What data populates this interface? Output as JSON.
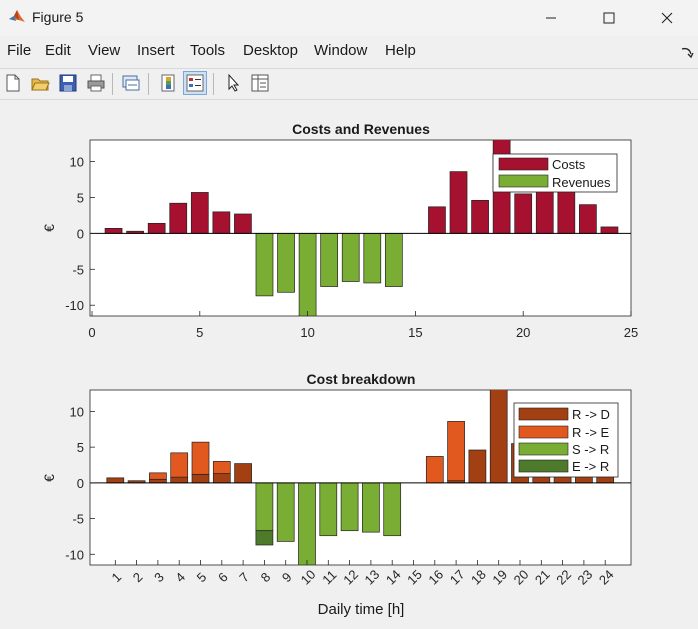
{
  "window": {
    "title": "Figure 5"
  },
  "menu": [
    "File",
    "Edit",
    "View",
    "Insert",
    "Tools",
    "Desktop",
    "Window",
    "Help"
  ],
  "toolbar_icons": [
    "new-figure-icon",
    "open-file-icon",
    "save-icon",
    "print-icon",
    "link-plot-icon",
    "insert-colorbar-icon",
    "insert-legend-icon",
    "edit-plot-arrow-icon",
    "property-inspector-icon"
  ],
  "colors": {
    "costs": "#a5112e",
    "revenues": "#7aad34",
    "r_d": "#a23f13",
    "r_e": "#e2591f",
    "s_r": "#7aad34",
    "e_r": "#4d7a2b"
  },
  "chart_data": [
    {
      "type": "bar",
      "title": "Costs and Revenues",
      "ylabel": "€",
      "xlabel": "",
      "xlim": [
        0,
        25
      ],
      "ylim": [
        -11.5,
        13
      ],
      "xticks": [
        "0",
        "5",
        "10",
        "15",
        "20",
        "25"
      ],
      "yticks": [
        "10",
        "5",
        "0",
        "-5",
        "-10"
      ],
      "legend": [
        "Costs",
        "Revenues"
      ],
      "legend_position": "top-right",
      "x": [
        1,
        2,
        3,
        4,
        5,
        6,
        7,
        8,
        9,
        10,
        11,
        12,
        13,
        14,
        15,
        16,
        17,
        18,
        19,
        20,
        21,
        22,
        23,
        24
      ],
      "series": [
        {
          "name": "Costs",
          "values": [
            0.7,
            0.3,
            1.4,
            4.2,
            5.7,
            3.0,
            2.7,
            0,
            0,
            0,
            0,
            0,
            0,
            0,
            0,
            3.7,
            8.6,
            4.6,
            13.3,
            5.5,
            6.8,
            6.5,
            4.0,
            0.9
          ]
        },
        {
          "name": "Revenues",
          "values": [
            0,
            0,
            0,
            0,
            0,
            0,
            0,
            -8.7,
            -8.2,
            -11.5,
            -7.4,
            -6.7,
            -6.9,
            -7.4,
            0,
            0,
            0,
            0,
            0,
            0,
            0,
            0,
            0,
            0
          ]
        }
      ]
    },
    {
      "type": "bar",
      "title": "Cost breakdown",
      "ylabel": "€",
      "xlabel": "Daily time [h]",
      "ylim": [
        -11.5,
        13
      ],
      "yticks": [
        "10",
        "5",
        "0",
        "-5",
        "-10"
      ],
      "categories": [
        "1",
        "2",
        "3",
        "4",
        "5",
        "6",
        "7",
        "8",
        "9",
        "10",
        "11",
        "12",
        "13",
        "14",
        "15",
        "16",
        "17",
        "18",
        "19",
        "20",
        "21",
        "22",
        "23",
        "24"
      ],
      "legend": [
        "R -> D",
        "R -> E",
        "S -> R",
        "E -> R"
      ],
      "legend_position": "top-right",
      "series": [
        {
          "name": "R -> D",
          "values": [
            0.7,
            0.3,
            0.5,
            0.8,
            1.2,
            1.3,
            2.7,
            0,
            0,
            0,
            0,
            0,
            0,
            0,
            0,
            0,
            0.3,
            4.6,
            13.3,
            5.5,
            6.8,
            6.5,
            4.0,
            0.9
          ]
        },
        {
          "name": "R -> E",
          "values": [
            0,
            0,
            0.9,
            3.4,
            4.5,
            1.7,
            0,
            0,
            0,
            0,
            0,
            0,
            0,
            0,
            0,
            3.7,
            8.3,
            0,
            0,
            0,
            0,
            0,
            0,
            0
          ]
        },
        {
          "name": "S -> R",
          "values": [
            0,
            0,
            0,
            0,
            0,
            0,
            0,
            -6.7,
            -8.2,
            -11.5,
            -7.4,
            -6.7,
            -6.9,
            -7.4,
            0,
            0,
            0,
            0,
            0,
            0,
            0,
            0,
            0,
            0
          ]
        },
        {
          "name": "E -> R",
          "values": [
            0,
            0,
            0,
            0,
            0,
            0,
            0,
            -2.0,
            0,
            0,
            0,
            0,
            0,
            0,
            0,
            0,
            0,
            0,
            0,
            0,
            0,
            0,
            0,
            0
          ]
        }
      ]
    }
  ]
}
